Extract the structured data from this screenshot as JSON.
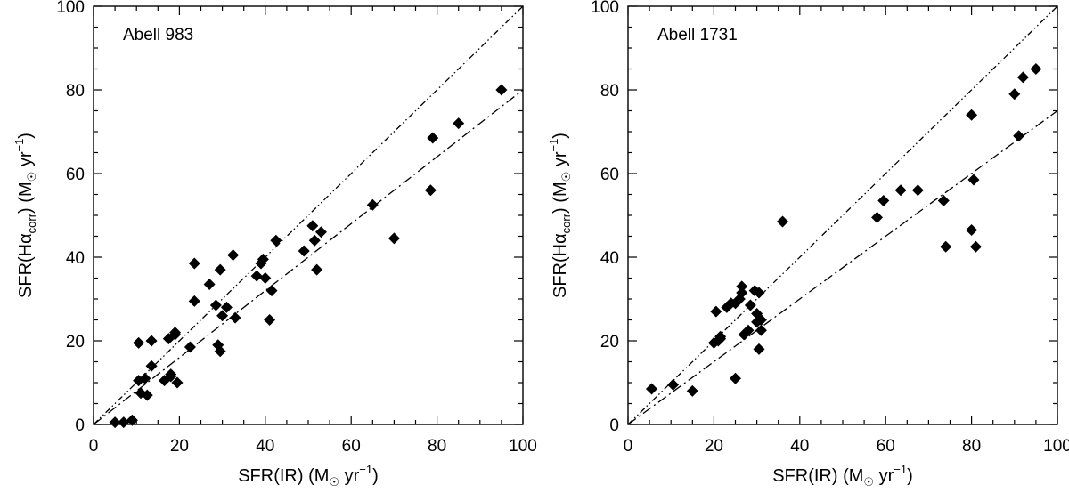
{
  "chart_data": [
    {
      "type": "scatter",
      "title": "Abell 983",
      "xlabel": "SFR(IR) (M_sun yr^-1)",
      "ylabel": "SFR(Hα_corr) (M_sun yr^-1)",
      "xlim": [
        0,
        100
      ],
      "ylim": [
        0,
        100
      ],
      "xticks": [
        0,
        20,
        40,
        60,
        80,
        100
      ],
      "yticks": [
        0,
        20,
        40,
        60,
        80,
        100
      ],
      "lines": [
        {
          "name": "one-to-one",
          "style": "dash-dot-dot",
          "points": [
            [
              0,
              0
            ],
            [
              100,
              100
            ]
          ]
        },
        {
          "name": "fit",
          "style": "dash-dot",
          "points": [
            [
              0,
              0
            ],
            [
              100,
              80
            ]
          ]
        }
      ],
      "x": [
        5,
        7,
        9,
        10.5,
        10.5,
        11,
        12,
        12.5,
        13.5,
        13.5,
        16.5,
        17.5,
        18,
        18,
        19,
        19,
        19.5,
        22.5,
        23.5,
        23.5,
        27,
        28.5,
        29,
        29.5,
        29.5,
        30,
        31,
        32.5,
        33,
        38,
        39,
        39.5,
        40,
        41,
        41.5,
        42.5,
        49,
        51,
        51.5,
        52,
        53,
        65,
        70,
        78.5,
        79,
        85,
        95
      ],
      "y": [
        0.5,
        0.5,
        1,
        19.5,
        10.5,
        7.5,
        11,
        7,
        14,
        20,
        10.5,
        20.5,
        11.5,
        12,
        21.5,
        22,
        10,
        18.5,
        38.5,
        29.5,
        33.5,
        28.5,
        19,
        17.5,
        37,
        26,
        28,
        40.5,
        25.5,
        35.5,
        38.5,
        39.5,
        35,
        25,
        32,
        44,
        41.5,
        47.5,
        44,
        37,
        46,
        52.5,
        44.5,
        56,
        68.5,
        72,
        80
      ]
    },
    {
      "type": "scatter",
      "title": "Abell 1731",
      "xlabel": "SFR(IR) (M_sun yr^-1)",
      "ylabel": "SFR(Hα_corr) (M_sun yr^-1)",
      "xlim": [
        0,
        100
      ],
      "ylim": [
        0,
        100
      ],
      "xticks": [
        0,
        20,
        40,
        60,
        80,
        100
      ],
      "yticks": [
        0,
        20,
        40,
        60,
        80,
        100
      ],
      "lines": [
        {
          "name": "one-to-one",
          "style": "dash-dot-dot",
          "points": [
            [
              0,
              0
            ],
            [
              100,
              100
            ]
          ]
        },
        {
          "name": "fit",
          "style": "dash-dot",
          "points": [
            [
              0,
              0
            ],
            [
              100,
              75
            ]
          ]
        }
      ],
      "x": [
        5.5,
        10.5,
        15,
        20,
        20.5,
        21,
        21.5,
        21.5,
        23,
        24,
        25,
        25,
        25.5,
        26,
        26.5,
        26.5,
        27,
        28,
        28.5,
        29.5,
        30,
        30,
        30.5,
        30.5,
        31,
        31,
        36,
        58,
        59.5,
        63.5,
        67.5,
        73.5,
        74,
        80,
        80,
        80.5,
        81,
        90,
        91,
        92,
        95
      ],
      "y": [
        8.5,
        9.5,
        8,
        19.5,
        27,
        20,
        20.5,
        21,
        28,
        29,
        29,
        11,
        29.5,
        30,
        31.5,
        33,
        21.5,
        22.5,
        28.5,
        32,
        26.5,
        24.5,
        18,
        31.5,
        25,
        22.5,
        48.5,
        49.5,
        53.5,
        56,
        56,
        53.5,
        42.5,
        46.5,
        74,
        58.5,
        42.5,
        79,
        69,
        83,
        85
      ]
    }
  ]
}
